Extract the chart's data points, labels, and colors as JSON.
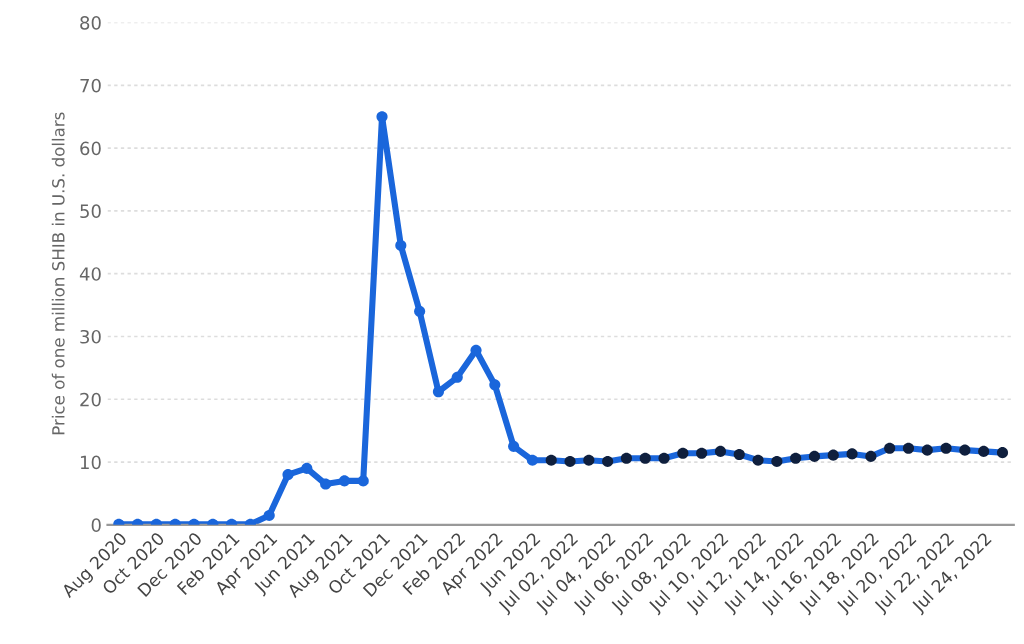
{
  "chart_data": {
    "type": "line",
    "ylabel": "Price of one million SHIB in U.S. dollars",
    "categories": [
      "Aug 2020",
      null,
      "Oct 2020",
      null,
      "Dec 2020",
      null,
      "Feb 2021",
      null,
      "Apr 2021",
      null,
      "Jun 2021",
      null,
      "Aug 2021",
      null,
      "Oct 2021",
      null,
      "Dec 2021",
      null,
      "Feb 2022",
      null,
      "Apr 2022",
      null,
      "Jun 2022",
      null,
      "Jul 02, 2022",
      null,
      "Jul 04, 2022",
      null,
      "Jul 06, 2022",
      null,
      "Jul 08, 2022",
      null,
      "Jul 10, 2022",
      null,
      "Jul 12, 2022",
      null,
      "Jul 14, 2022",
      null,
      "Jul 16, 2022",
      null,
      "Jul 18, 2022",
      null,
      "Jul 20, 2022",
      null,
      "Jul 22, 2022",
      null,
      "Jul 24, 2022",
      null
    ],
    "series": [
      {
        "color": "#1a66db",
        "values": [
          0.1,
          0.1,
          0.1,
          0.1,
          0.1,
          0.1,
          0.1,
          0.1,
          1.5,
          8,
          9,
          6.5,
          7,
          7,
          65,
          44.5,
          34,
          21.2,
          23.5,
          27.8,
          22.3,
          12.5,
          10.3,
          10.3,
          10.1,
          10.3,
          10.1,
          10.6,
          10.6,
          10.6,
          11.4,
          11.4,
          11.7,
          11.2,
          10.3,
          10.1,
          10.6,
          10.9,
          11.1,
          11.3,
          10.9,
          12.2,
          12.2,
          11.9,
          12.2,
          11.9,
          11.7,
          11.5
        ],
        "colors": [
          "#1a66db",
          "#1a66db",
          "#1a66db",
          "#1a66db",
          "#1a66db",
          "#1a66db",
          "#1a66db",
          "#1a66db",
          "#1a66db",
          "#1a66db",
          "#1a66db",
          "#1a66db",
          "#1a66db",
          "#1a66db",
          "#1a66db",
          "#1a66db",
          "#1a66db",
          "#1a66db",
          "#1a66db",
          "#1a66db",
          "#1a66db",
          "#1a66db",
          "#1a66db",
          "#0f1f3d",
          "#0f1f3d",
          "#0f1f3d",
          "#0f1f3d",
          "#0f1f3d",
          "#0f1f3d",
          "#0f1f3d",
          "#0f1f3d",
          "#0f1f3d",
          "#0f1f3d",
          "#0f1f3d",
          "#0f1f3d",
          "#0f1f3d",
          "#0f1f3d",
          "#0f1f3d",
          "#0f1f3d",
          "#0f1f3d",
          "#0f1f3d",
          "#0f1f3d",
          "#0f1f3d",
          "#0f1f3d",
          "#0f1f3d",
          "#0f1f3d",
          "#0f1f3d",
          "#0f1f3d"
        ]
      }
    ],
    "ylim": [
      0,
      80
    ],
    "yticks": [
      0,
      10,
      20,
      30,
      40,
      50,
      60,
      70,
      80
    ],
    "grid": "y",
    "marker": "circle",
    "line_style": "solid",
    "legend": false
  }
}
